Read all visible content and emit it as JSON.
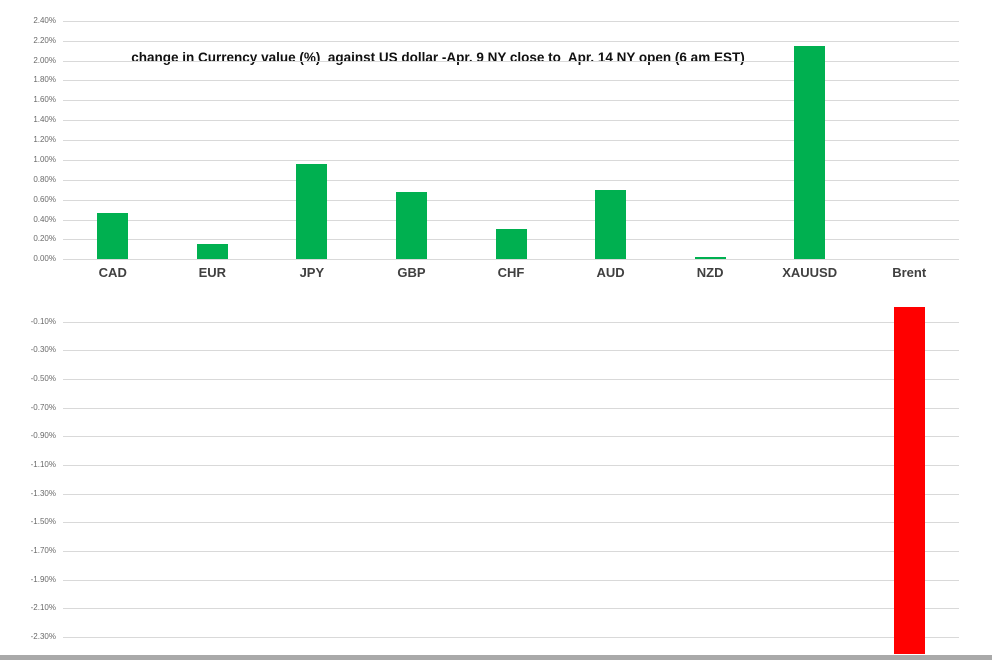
{
  "chart_data": {
    "type": "bar",
    "title": "change in Currency value (%)  against US dollar -Apr. 9 NY close to  Apr. 14 NY open (6 am EST)",
    "categories": [
      "CAD",
      "EUR",
      "JPY",
      "GBP",
      "CHF",
      "AUD",
      "NZD",
      "XAUUSD",
      "Brent"
    ],
    "values": [
      0.47,
      0.15,
      0.96,
      0.68,
      0.3,
      0.7,
      0.02,
      2.15,
      -2.42
    ],
    "unit": "%",
    "positive_color": "#00B050",
    "negative_color": "#FF0000",
    "upper_axis_ticks": [
      "2.40%",
      "2.20%",
      "2.00%",
      "1.80%",
      "1.60%",
      "1.40%",
      "1.20%",
      "1.00%",
      "0.80%",
      "0.60%",
      "0.40%",
      "0.20%",
      "0.00%"
    ],
    "lower_axis_ticks": [
      "-0.10%",
      "-0.30%",
      "-0.50%",
      "-0.70%",
      "-0.90%",
      "-1.10%",
      "-1.30%",
      "-1.50%",
      "-1.70%",
      "-1.90%",
      "-2.10%",
      "-2.30%"
    ],
    "ylim_upper": [
      0.0,
      2.4
    ],
    "ylim_lower": [
      -2.42,
      0.0
    ],
    "grid": true,
    "legend": "none",
    "layout_note": "positive bars plotted in upper panel scale, negative Brent bar plotted in lower panel scale and clipped at bottom edge"
  },
  "colors": {
    "gridline": "#d9d9d9",
    "tick_text": "#6a6a6a",
    "category_text": "#404040",
    "title_text": "#111111",
    "bottom_edge": "#a9a9a9"
  }
}
